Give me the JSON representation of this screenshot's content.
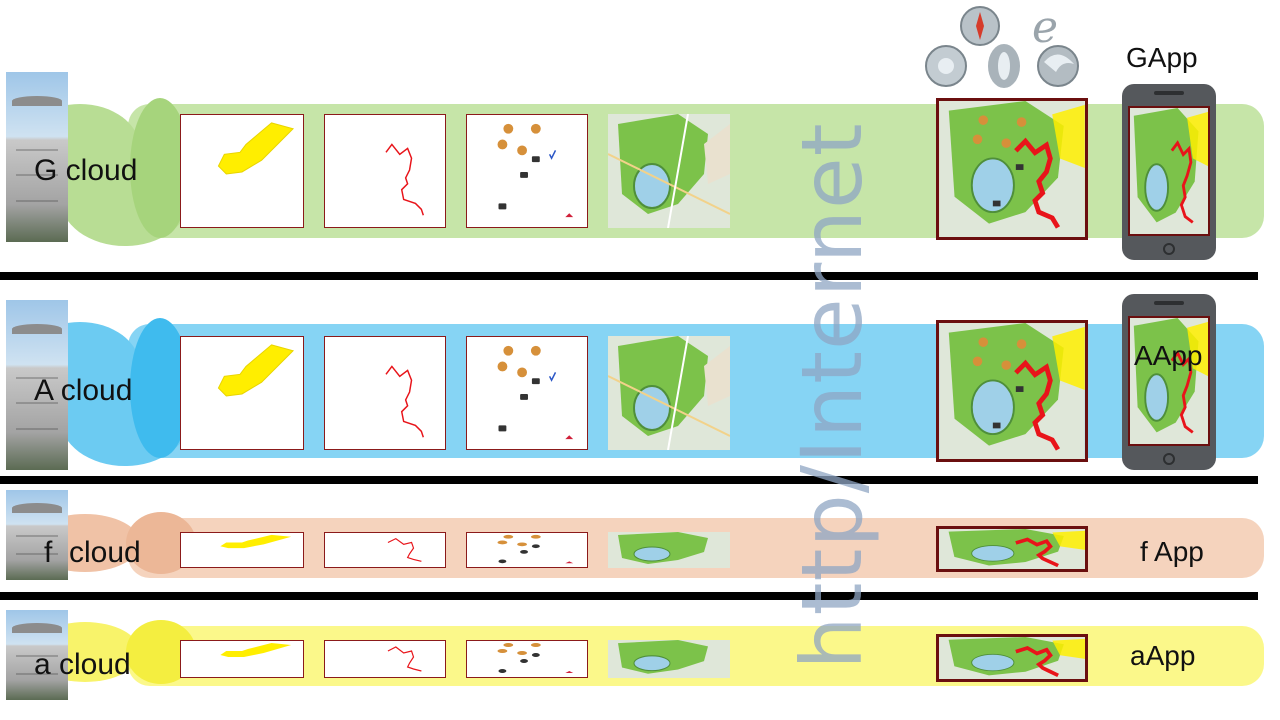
{
  "rows": [
    {
      "cloud_label": "G cloud",
      "app_label": "GApp"
    },
    {
      "cloud_label": "A cloud",
      "app_label": "AApp"
    },
    {
      "cloud_label": "f  cloud",
      "app_label": "f App"
    },
    {
      "cloud_label": "a cloud",
      "app_label": "aApp"
    }
  ],
  "center_label": "http/Internet",
  "icons": [
    "data-center-icon",
    "polygon-layer-icon",
    "route-layer-icon",
    "poi-layer-icon",
    "basemap-tile-icon",
    "composite-map-icon",
    "smartphone-icon",
    "browser-logos-icon"
  ],
  "colors": {
    "g_band": "#c6e5a8",
    "a_band": "#86d4f4",
    "f_band": "#f5d3bd",
    "a_small_band": "#fbf88a",
    "polygon": "#ffee00",
    "route": "#e8141a",
    "frame": "#8b1a1a",
    "center_text": "#8fa6c4"
  }
}
